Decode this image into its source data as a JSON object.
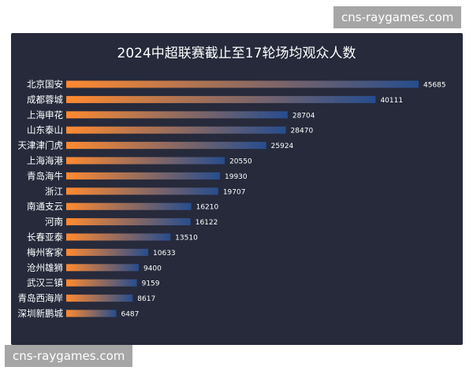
{
  "watermark_text": "cns-raygames.com",
  "chart_data": {
    "type": "bar",
    "orientation": "horizontal",
    "title": "2024中超联赛截止至17轮场均观众人数",
    "categories": [
      "北京国安",
      "成都蓉城",
      "上海申花",
      "山东泰山",
      "天津津门虎",
      "上海海港",
      "青岛海牛",
      "浙江",
      "南通支云",
      "河南",
      "长春亚泰",
      "梅州客家",
      "沧州雄狮",
      "武汉三镇",
      "青岛西海岸",
      "深圳新鹏城"
    ],
    "values": [
      45685,
      40111,
      28704,
      28470,
      25924,
      20550,
      19930,
      19707,
      16210,
      16122,
      13510,
      10633,
      9400,
      9159,
      8617,
      6487
    ],
    "xlim": [
      0,
      45685
    ],
    "grid": false,
    "legend": "none",
    "bar_gradient": [
      "#ff8a30",
      "#264d8e"
    ]
  }
}
